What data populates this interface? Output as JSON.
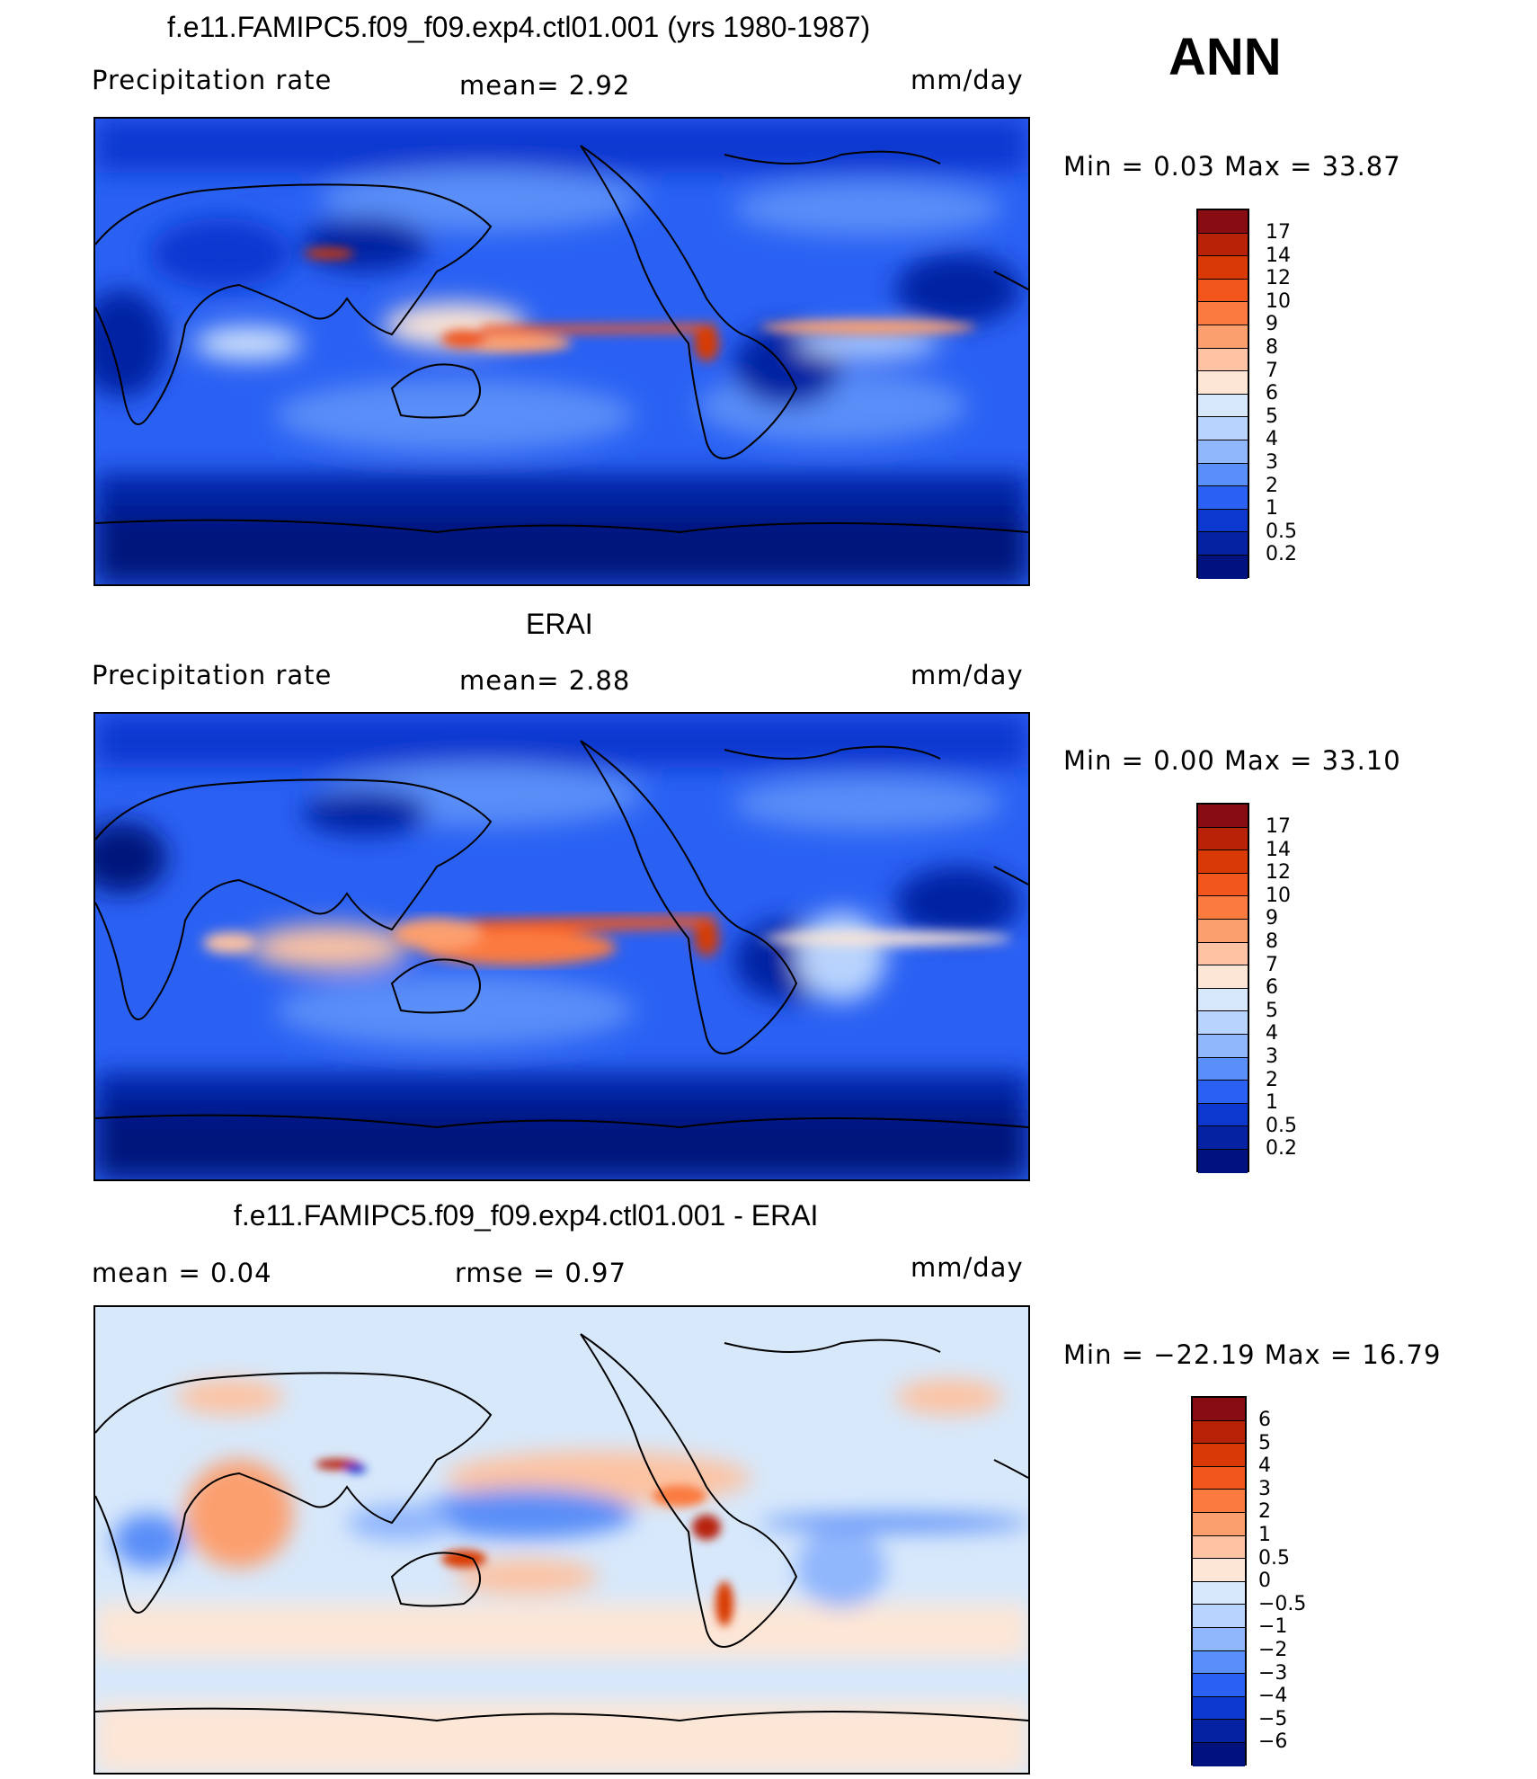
{
  "header": {
    "season": "ANN"
  },
  "panels": [
    {
      "title": "f.e11.FAMIPC5.f09_f09.exp4.ctl01.001 (yrs 1980-1987)",
      "left_label": "Precipitation  rate",
      "center_label": "mean=     2.92",
      "units": "mm/day",
      "minmax": "Min  =     0.03  Max  =    33.87",
      "colorbar": {
        "labels": [
          "17",
          "14",
          "12",
          "10",
          "9",
          "8",
          "7",
          "6",
          "5",
          "4",
          "3",
          "2",
          "1",
          "0.5",
          "0.2"
        ],
        "colors": [
          "#870d12",
          "#b82207",
          "#d93a05",
          "#f2561d",
          "#fb7a3f",
          "#fc9f6e",
          "#fdc3a2",
          "#fde6d6",
          "#d7e8fb",
          "#b8d3fd",
          "#90b6fc",
          "#5a8ef8",
          "#2a61f3",
          "#0c38d0",
          "#0522a3",
          "#00127d"
        ]
      }
    },
    {
      "title": "ERAI",
      "left_label": "Precipitation  rate",
      "center_label": "mean=     2.88",
      "units": "mm/day",
      "minmax": "Min  =     0.00  Max  =    33.10",
      "colorbar": {
        "labels": [
          "17",
          "14",
          "12",
          "10",
          "9",
          "8",
          "7",
          "6",
          "5",
          "4",
          "3",
          "2",
          "1",
          "0.5",
          "0.2"
        ],
        "colors": [
          "#870d12",
          "#b82207",
          "#d93a05",
          "#f2561d",
          "#fb7a3f",
          "#fc9f6e",
          "#fdc3a2",
          "#fde6d6",
          "#d7e8fb",
          "#b8d3fd",
          "#90b6fc",
          "#5a8ef8",
          "#2a61f3",
          "#0c38d0",
          "#0522a3",
          "#00127d"
        ]
      }
    },
    {
      "title": "f.e11.FAMIPC5.f09_f09.exp4.ctl01.001 - ERAI",
      "left_label": "mean  =      0.04",
      "center_label": "rmse  =      0.97",
      "units": "mm/day",
      "minmax": "Min  = −22.19  Max  =    16.79",
      "colorbar": {
        "labels": [
          "6",
          "5",
          "4",
          "3",
          "2",
          "1",
          "0.5",
          "0",
          "−0.5",
          "−1",
          "−2",
          "−3",
          "−4",
          "−5",
          "−6"
        ],
        "colors": [
          "#870d12",
          "#b82207",
          "#d93a05",
          "#f2561d",
          "#fb7a3f",
          "#fc9f6e",
          "#fdc3a2",
          "#fde6d6",
          "#d7e8fb",
          "#b8d3fd",
          "#90b6fc",
          "#5a8ef8",
          "#2a61f3",
          "#0c38d0",
          "#0522a3",
          "#00127d"
        ]
      }
    }
  ]
}
